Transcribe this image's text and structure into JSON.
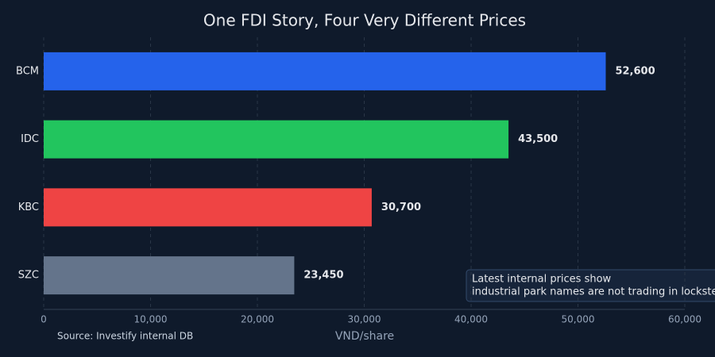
{
  "chart_data": {
    "type": "bar",
    "orientation": "horizontal",
    "title": "One FDI Story, Four Very Different Prices",
    "xlabel": "VND/share",
    "source": "Source: Investify internal DB",
    "annotation": [
      "Latest internal prices show",
      "industrial park names are not trading in lockstep"
    ],
    "categories": [
      "BCM",
      "IDC",
      "KBC",
      "SZC"
    ],
    "values": [
      52600,
      43500,
      30700,
      23450
    ],
    "value_labels": [
      "52,600",
      "43,500",
      "30,700",
      "23,450"
    ],
    "colors": [
      "#2563eb",
      "#22c55e",
      "#ef4444",
      "#64748b"
    ],
    "xlim": [
      0,
      60000
    ],
    "xticks": [
      0,
      {
        "value": 10000,
        "label": "10,000"
      },
      {
        "value": 20000,
        "label": "20,000"
      },
      {
        "value": 30000,
        "label": "30,000"
      },
      {
        "value": 40000,
        "label": "40,000"
      },
      {
        "value": 50000,
        "label": "50,000"
      },
      {
        "value": 60000,
        "label": "60,000"
      }
    ],
    "grid": true
  }
}
